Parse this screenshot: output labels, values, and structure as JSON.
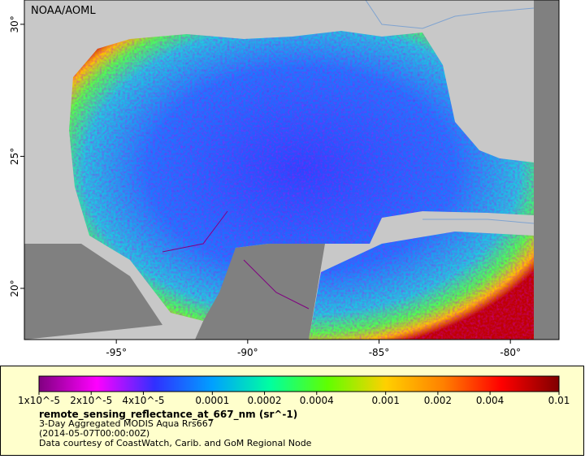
{
  "map": {
    "credit": "NOAA/AOML",
    "lonlim": [
      -98.5,
      -78.15
    ],
    "latlim": [
      18.06,
      30.92
    ],
    "lon_ticks": [
      {
        "value": -95,
        "label": "-95°"
      },
      {
        "value": -90,
        "label": "-90°"
      },
      {
        "value": -85,
        "label": "-85°"
      },
      {
        "value": -80,
        "label": "-80°"
      }
    ],
    "lat_ticks": [
      {
        "value": 20,
        "label": "20°"
      },
      {
        "value": 25,
        "label": "25°"
      },
      {
        "value": 30,
        "label": "30°"
      }
    ]
  },
  "legend": {
    "scale": "log",
    "lim": [
      1e-05,
      0.01
    ],
    "colors": [
      "#800080",
      "#ff00ff",
      "#3030ff",
      "#00a0ff",
      "#00ffa0",
      "#60ff00",
      "#ffd000",
      "#ff8000",
      "#ff0000",
      "#800000"
    ],
    "ticks": [
      {
        "value": 1e-05,
        "label": "1x10^-5"
      },
      {
        "value": 2e-05,
        "label": "2x10^-5"
      },
      {
        "value": 4e-05,
        "label": "4x10^-5"
      },
      0.0001,
      0.0002,
      0.0004,
      0.001,
      0.002,
      0.004,
      0.01
    ],
    "title": "remote_sensing_reflectance_at_667_nm (sr^-1)",
    "lines": [
      "3-Day Aggregated MODIS Aqua Rrs667",
      "(2014-05-07T00:00:00Z)",
      "Data courtesy of CoastWatch, Carib. and GoM Regional Node"
    ]
  }
}
